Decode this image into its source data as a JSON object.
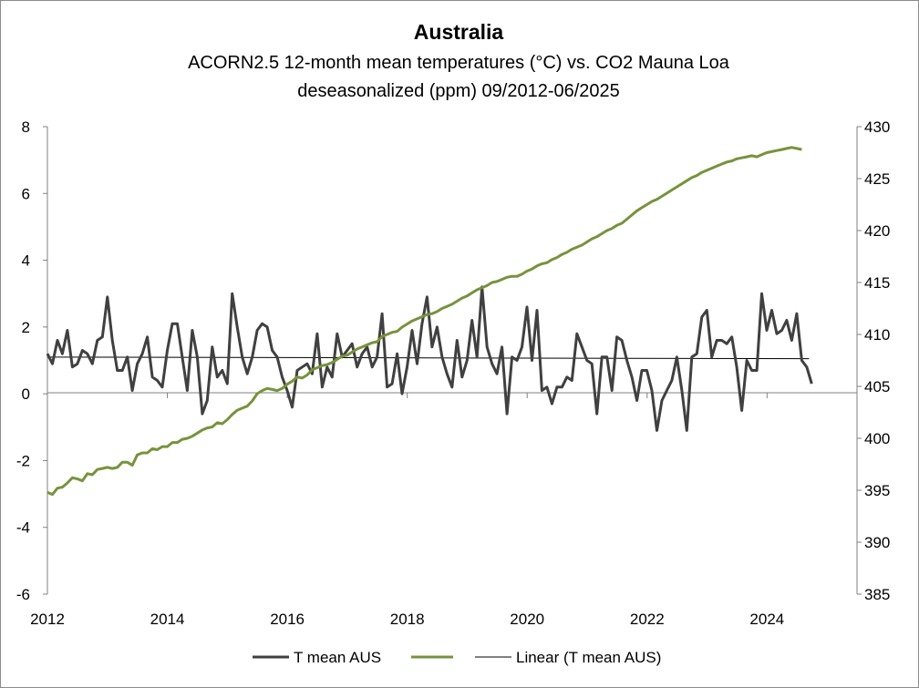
{
  "chart_data": {
    "type": "line",
    "title": "Australia",
    "subtitle_lines": [
      "ACORN2.5 12-month mean temperatures (°C) vs. CO2 Mauna Loa",
      "deseasonalized (ppm) 09/2012-06/2025"
    ],
    "x_range": [
      2012,
      2025.5
    ],
    "x_ticks": [
      "2012",
      "2014",
      "2016",
      "2018",
      "2020",
      "2022",
      "2024"
    ],
    "y_left": {
      "range": [
        -6,
        8
      ],
      "ticks": [
        "8",
        "6",
        "4",
        "2",
        "0",
        "-2",
        "-4",
        "-6"
      ]
    },
    "y_right": {
      "range": [
        385,
        430
      ],
      "ticks": [
        "430",
        "425",
        "420",
        "415",
        "410",
        "405",
        "400",
        "395",
        "390",
        "385"
      ]
    },
    "grid": false,
    "legend_position": "bottom",
    "series": [
      {
        "name": "T mean AUS",
        "axis": "left",
        "color": "#404040",
        "x_start": 2012.0,
        "x_step": 0.0833,
        "values": [
          1.2,
          0.9,
          1.6,
          1.2,
          1.9,
          0.8,
          0.9,
          1.3,
          1.2,
          0.9,
          1.6,
          1.7,
          2.9,
          1.6,
          0.7,
          0.7,
          1.1,
          0.1,
          0.9,
          1.2,
          1.7,
          0.5,
          0.4,
          0.2,
          1.3,
          2.1,
          2.1,
          1.1,
          0.1,
          1.9,
          1.1,
          -0.6,
          -0.2,
          1.4,
          0.5,
          0.7,
          0.3,
          3.0,
          2.0,
          1.1,
          0.6,
          1.1,
          1.9,
          2.1,
          2.0,
          1.3,
          1.1,
          0.5,
          0.1,
          -0.4,
          0.7,
          0.8,
          0.9,
          0.6,
          1.8,
          0.2,
          0.8,
          0.5,
          1.8,
          1.1,
          1.3,
          1.5,
          0.8,
          1.2,
          1.4,
          0.8,
          1.1,
          2.4,
          0.2,
          0.3,
          1.2,
          0.0,
          0.8,
          1.9,
          0.9,
          2.1,
          2.9,
          1.4,
          2.0,
          1.1,
          0.6,
          0.2,
          1.6,
          0.5,
          1.0,
          2.2,
          1.1,
          3.2,
          1.4,
          0.9,
          0.6,
          1.4,
          -0.6,
          1.1,
          1.0,
          1.4,
          2.6,
          1.0,
          2.5,
          0.1,
          0.2,
          -0.3,
          0.2,
          0.2,
          0.5,
          0.4,
          1.8,
          1.4,
          1.0,
          0.9,
          -0.6,
          1.1,
          1.1,
          0.1,
          1.7,
          1.6,
          1.0,
          0.5,
          -0.2,
          0.7,
          0.7,
          0.1,
          -1.1,
          -0.2,
          0.1,
          0.4,
          1.1,
          0.1,
          -1.1,
          1.1,
          1.2,
          2.3,
          2.5,
          1.1,
          1.6,
          1.6,
          1.5,
          1.7,
          0.8,
          -0.5,
          1.0,
          0.7,
          0.7,
          3.0,
          1.9,
          2.5,
          1.8,
          1.9,
          2.2,
          1.6,
          2.4,
          1.0,
          0.8,
          0.3
        ]
      },
      {
        "name": "",
        "axis": "right",
        "color": "#77933c",
        "x_start": 2012.0,
        "x_step": 0.0833,
        "values": [
          394.8,
          394.6,
          395.2,
          395.3,
          395.7,
          396.2,
          396.1,
          395.9,
          396.6,
          396.5,
          397.0,
          397.1,
          397.2,
          397.1,
          397.2,
          397.7,
          397.7,
          397.4,
          398.4,
          398.6,
          398.6,
          399.0,
          398.9,
          399.2,
          399.2,
          399.6,
          399.6,
          399.9,
          400.0,
          400.2,
          400.5,
          400.8,
          401.0,
          401.1,
          401.5,
          401.4,
          401.8,
          402.3,
          402.7,
          402.9,
          403.1,
          403.6,
          404.3,
          404.6,
          404.8,
          404.7,
          404.6,
          404.8,
          405.2,
          405.5,
          405.9,
          405.8,
          406.1,
          406.6,
          406.8,
          407.0,
          407.1,
          407.3,
          407.6,
          407.9,
          408.0,
          408.3,
          408.6,
          408.8,
          409.0,
          409.2,
          409.3,
          409.8,
          410.0,
          410.2,
          410.3,
          410.7,
          411.0,
          411.3,
          411.5,
          411.7,
          411.9,
          412.0,
          412.2,
          412.5,
          412.7,
          412.9,
          413.2,
          413.5,
          413.7,
          414.0,
          414.3,
          414.5,
          414.7,
          415.0,
          415.1,
          415.3,
          415.5,
          415.6,
          415.6,
          415.8,
          416.1,
          416.3,
          416.6,
          416.8,
          416.9,
          417.2,
          417.4,
          417.7,
          417.9,
          418.2,
          418.4,
          418.6,
          418.9,
          419.2,
          419.4,
          419.7,
          420.0,
          420.2,
          420.5,
          420.7,
          421.1,
          421.5,
          421.9,
          422.2,
          422.5,
          422.8,
          423.0,
          423.3,
          423.6,
          423.9,
          424.2,
          424.5,
          424.8,
          425.1,
          425.3,
          425.6,
          425.8,
          426.0,
          426.2,
          426.4,
          426.6,
          426.7,
          426.9,
          427.0,
          427.1,
          427.2,
          427.1,
          427.3,
          427.5,
          427.6,
          427.7,
          427.8,
          427.9,
          428.0,
          427.9,
          427.8
        ]
      }
    ],
    "trendline": {
      "name": "Linear (T mean AUS)",
      "axis": "left",
      "color": "#000000",
      "x": [
        2012.0,
        2024.7
      ],
      "y": [
        1.1,
        1.05
      ]
    },
    "legend": [
      "T mean AUS",
      "",
      "Linear (T mean AUS)"
    ]
  }
}
